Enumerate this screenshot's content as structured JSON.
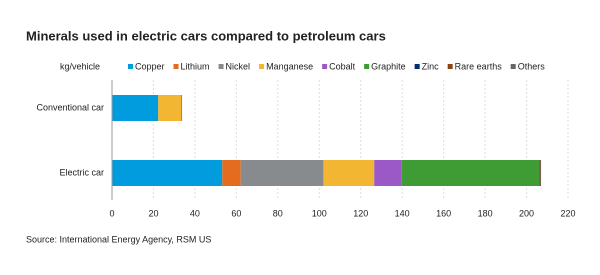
{
  "chart_data": {
    "type": "stacked-barh",
    "title": "Minerals used in electric cars compared to petroleum cars",
    "x_label": "kg/vehicle",
    "source": "Source: International Energy Agency, RSM US",
    "categories": [
      "Conventional car",
      "Electric car"
    ],
    "series": [
      {
        "name": "Copper",
        "color": "#009cde",
        "values": [
          22.3,
          53.2
        ]
      },
      {
        "name": "Lithium",
        "color": "#e36c1e",
        "values": [
          0,
          8.9
        ]
      },
      {
        "name": "Nickel",
        "color": "#888b8d",
        "values": [
          0,
          39.9
        ]
      },
      {
        "name": "Manganese",
        "color": "#f2b632",
        "values": [
          11.2,
          24.5
        ]
      },
      {
        "name": "Cobalt",
        "color": "#9b59c8",
        "values": [
          0,
          13.3
        ]
      },
      {
        "name": "Graphite",
        "color": "#3f9c35",
        "values": [
          0,
          66.3
        ]
      },
      {
        "name": "Zinc",
        "color": "#002d72",
        "values": [
          0,
          0.1
        ]
      },
      {
        "name": "Rare earths",
        "color": "#8b4513",
        "values": [
          0,
          0.5
        ]
      },
      {
        "name": "Others",
        "color": "#63666a",
        "values": [
          0.3,
          0.3
        ]
      }
    ],
    "xlim": [
      0,
      220
    ],
    "xticks": [
      0,
      20,
      40,
      60,
      80,
      100,
      120,
      140,
      160,
      180,
      200,
      220
    ],
    "grid": true
  }
}
